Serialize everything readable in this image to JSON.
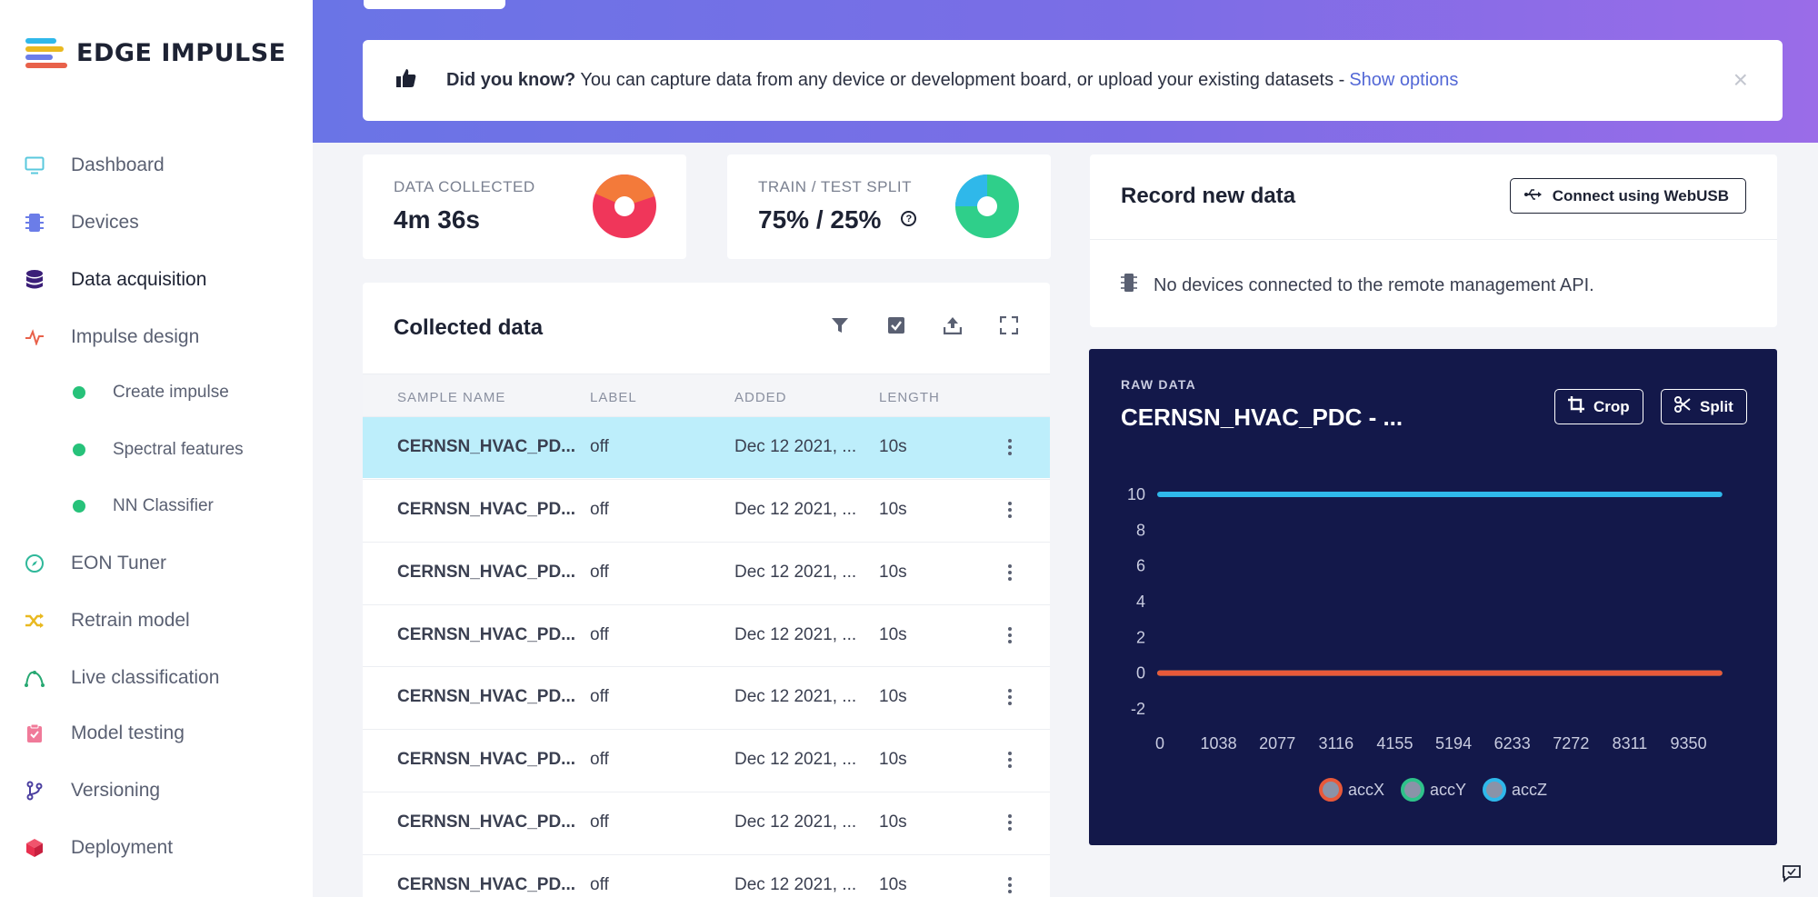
{
  "app": {
    "name": "EDGE IMPULSE"
  },
  "sidebar": {
    "items": [
      {
        "label": "Dashboard",
        "icon": "monitor-icon",
        "color": "#5ac8dd"
      },
      {
        "label": "Devices",
        "icon": "chip-icon",
        "color": "#6b7de8"
      },
      {
        "label": "Data acquisition",
        "icon": "database-icon",
        "color": "#3b1f78",
        "active": true
      },
      {
        "label": "Impulse design",
        "icon": "pulse-icon",
        "color": "#e8614a"
      },
      {
        "label": "EON Tuner",
        "icon": "compass-icon",
        "color": "#2fb89a"
      },
      {
        "label": "Retrain model",
        "icon": "shuffle-icon",
        "color": "#e9b920"
      },
      {
        "label": "Live classification",
        "icon": "curve-icon",
        "color": "#27a872"
      },
      {
        "label": "Model testing",
        "icon": "clipboard-check-icon",
        "color": "#f07a99"
      },
      {
        "label": "Versioning",
        "icon": "branch-icon",
        "color": "#4b3fa0"
      },
      {
        "label": "Deployment",
        "icon": "cube-icon",
        "color": "#e8304f"
      }
    ],
    "sub_items": [
      {
        "label": "Create impulse"
      },
      {
        "label": "Spectral features"
      },
      {
        "label": "NN Classifier"
      }
    ]
  },
  "banner": {
    "lead": "Did you know?",
    "text": "You can capture data from any device or development board, or upload your existing datasets -",
    "link": "Show options",
    "close": "×"
  },
  "stats": {
    "data_collected": {
      "label": "DATA COLLECTED",
      "value": "4m 36s"
    },
    "split": {
      "label": "TRAIN / TEST SPLIT",
      "value": "75% / 25%",
      "help": "?"
    }
  },
  "collected": {
    "title": "Collected data",
    "columns": [
      "SAMPLE NAME",
      "LABEL",
      "ADDED",
      "LENGTH"
    ],
    "rows": [
      {
        "name": "CERNSN_HVAC_PD...",
        "label": "off",
        "added": "Dec 12 2021, ...",
        "length": "10s",
        "selected": true
      },
      {
        "name": "CERNSN_HVAC_PD...",
        "label": "off",
        "added": "Dec 12 2021, ...",
        "length": "10s"
      },
      {
        "name": "CERNSN_HVAC_PD...",
        "label": "off",
        "added": "Dec 12 2021, ...",
        "length": "10s"
      },
      {
        "name": "CERNSN_HVAC_PD...",
        "label": "off",
        "added": "Dec 12 2021, ...",
        "length": "10s"
      },
      {
        "name": "CERNSN_HVAC_PD...",
        "label": "off",
        "added": "Dec 12 2021, ...",
        "length": "10s"
      },
      {
        "name": "CERNSN_HVAC_PD...",
        "label": "off",
        "added": "Dec 12 2021, ...",
        "length": "10s"
      },
      {
        "name": "CERNSN_HVAC_PD...",
        "label": "off",
        "added": "Dec 12 2021, ...",
        "length": "10s"
      },
      {
        "name": "CERNSN_HVAC_PD...",
        "label": "off",
        "added": "Dec 12 2021, ...",
        "length": "10s"
      }
    ]
  },
  "record": {
    "title": "Record new data",
    "connect_button": "Connect using WebUSB",
    "message": "No devices connected to the remote management API."
  },
  "raw": {
    "label": "RAW DATA",
    "title": "CERNSN_HVAC_PDC - ...",
    "crop_button": "Crop",
    "split_button": "Split"
  },
  "chart_data": {
    "type": "line",
    "x": [
      0,
      1038,
      2077,
      3116,
      4155,
      5194,
      6233,
      7272,
      8311,
      9350
    ],
    "x_ticks": [
      "0",
      "1038",
      "2077",
      "3116",
      "4155",
      "5194",
      "6233",
      "7272",
      "8311",
      "9350"
    ],
    "y_ticks": [
      "10",
      "8",
      "6",
      "4",
      "2",
      "0",
      "-2"
    ],
    "ylim": [
      -2,
      10
    ],
    "xlim": [
      0,
      10000
    ],
    "series": [
      {
        "name": "accX",
        "color": "#e8593a",
        "values": [
          0,
          0,
          0,
          0,
          0,
          0,
          0,
          0,
          0,
          0
        ]
      },
      {
        "name": "accY",
        "color": "#2fc28a",
        "values": [
          0,
          0,
          0,
          0,
          0,
          0,
          0,
          0,
          0,
          0
        ]
      },
      {
        "name": "accZ",
        "color": "#2fb8ea",
        "values": [
          10,
          10,
          10,
          10,
          10,
          10,
          10,
          10,
          10,
          10
        ]
      }
    ]
  },
  "colors": {
    "accent": "#5368d6",
    "selected_row": "#bdeefb",
    "raw_bg": "#13184a",
    "sub_dot": "#27c27a"
  }
}
